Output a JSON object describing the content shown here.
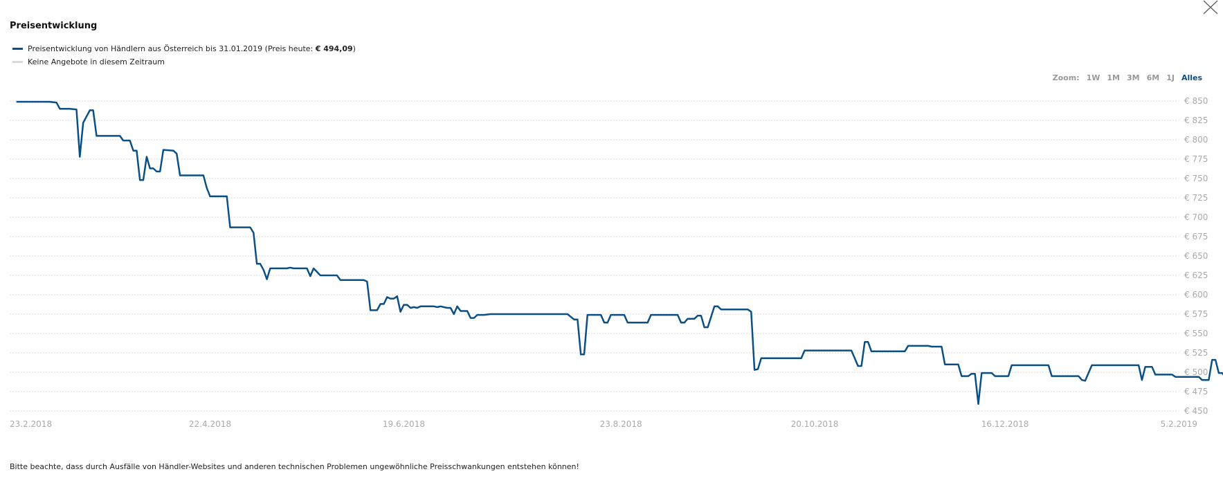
{
  "header": {
    "title": "Preisentwicklung",
    "close_label": "×"
  },
  "legend": {
    "line1_prefix": "Preisentwicklung von Händlern aus Österreich bis 31.01.2019 (Preis heute: ",
    "line1_price": "€ 494,09",
    "line1_suffix": ")",
    "line2": "Keine Angebote in diesem Zeitraum",
    "series_color": "#0b4f85",
    "empty_color": "#d9d9d9"
  },
  "zoom": {
    "label": "Zoom:",
    "options": [
      "1W",
      "1M",
      "3M",
      "6M",
      "1J",
      "Alles"
    ],
    "active": "Alles"
  },
  "footer": {
    "note": "Bitte beachte, dass durch Ausfälle von Händler-Websites und anderen technischen Problemen ungewöhnliche Preisschwankungen entstehen können!"
  },
  "chart_data": {
    "type": "line",
    "x_type": "date",
    "xlim": [
      "2018-02-21",
      "2019-02-06"
    ],
    "ylim": [
      450,
      850
    ],
    "y_ticks": [
      850,
      825,
      800,
      775,
      750,
      725,
      700,
      675,
      650,
      625,
      600,
      575,
      550,
      525,
      500,
      475,
      450
    ],
    "y_tick_labels": [
      "€ 850",
      "€ 825",
      "€ 800",
      "€ 775",
      "€ 750",
      "€ 725",
      "€ 700",
      "€ 675",
      "€ 650",
      "€ 625",
      "€ 600",
      "€ 575",
      "€ 550",
      "€ 525",
      "€ 500",
      "€ 475",
      "€ 450"
    ],
    "x_ticks": [
      "2018-02-23",
      "2018-04-22",
      "2018-06-19",
      "2018-08-23",
      "2018-10-20",
      "2018-12-16",
      "2019-02-05"
    ],
    "x_tick_labels": [
      "23.2.2018",
      "22.4.2018",
      "19.6.2018",
      "23.8.2018",
      "20.10.2018",
      "16.12.2018",
      "5.2.2019"
    ],
    "grid": true,
    "legend": "top-left",
    "series": [
      {
        "color": "#0b4f85",
        "points": [
          [
            "2018-02-23",
            849
          ],
          [
            "2018-03-05",
            849
          ],
          [
            "2018-03-07",
            848
          ],
          [
            "2018-03-08",
            840
          ],
          [
            "2018-03-11",
            840
          ],
          [
            "2018-03-13",
            839
          ],
          [
            "2018-03-14",
            778
          ],
          [
            "2018-03-15",
            822
          ],
          [
            "2018-03-17",
            838
          ],
          [
            "2018-03-18",
            838
          ],
          [
            "2018-03-19",
            805
          ],
          [
            "2018-03-26",
            805
          ],
          [
            "2018-03-27",
            799
          ],
          [
            "2018-03-29",
            799
          ],
          [
            "2018-03-30",
            786
          ],
          [
            "2018-03-31",
            786
          ],
          [
            "2018-04-01",
            748
          ],
          [
            "2018-04-02",
            748
          ],
          [
            "2018-04-03",
            778
          ],
          [
            "2018-04-04",
            763
          ],
          [
            "2018-04-05",
            763
          ],
          [
            "2018-04-06",
            759
          ],
          [
            "2018-04-07",
            759
          ],
          [
            "2018-04-08",
            787
          ],
          [
            "2018-04-11",
            786
          ],
          [
            "2018-04-12",
            782
          ],
          [
            "2018-04-13",
            754
          ],
          [
            "2018-04-20",
            754
          ],
          [
            "2018-04-21",
            738
          ],
          [
            "2018-04-22",
            727
          ],
          [
            "2018-04-27",
            727
          ],
          [
            "2018-04-28",
            687
          ],
          [
            "2018-05-04",
            687
          ],
          [
            "2018-05-05",
            680
          ],
          [
            "2018-05-06",
            640
          ],
          [
            "2018-05-07",
            640
          ],
          [
            "2018-05-08",
            632
          ],
          [
            "2018-05-09",
            620
          ],
          [
            "2018-05-10",
            634
          ],
          [
            "2018-05-15",
            634
          ],
          [
            "2018-05-16",
            635
          ],
          [
            "2018-05-17",
            634
          ],
          [
            "2018-05-21",
            634
          ],
          [
            "2018-05-22",
            624
          ],
          [
            "2018-05-23",
            634
          ],
          [
            "2018-05-25",
            625
          ],
          [
            "2018-05-30",
            625
          ],
          [
            "2018-05-31",
            619
          ],
          [
            "2018-06-07",
            619
          ],
          [
            "2018-06-08",
            617
          ],
          [
            "2018-06-09",
            580
          ],
          [
            "2018-06-11",
            580
          ],
          [
            "2018-06-12",
            588
          ],
          [
            "2018-06-13",
            588
          ],
          [
            "2018-06-14",
            597
          ],
          [
            "2018-06-15",
            595
          ],
          [
            "2018-06-16",
            595
          ],
          [
            "2018-06-17",
            598
          ],
          [
            "2018-06-18",
            578
          ],
          [
            "2018-06-19",
            587
          ],
          [
            "2018-06-20",
            587
          ],
          [
            "2018-06-21",
            583
          ],
          [
            "2018-06-22",
            584
          ],
          [
            "2018-06-23",
            583
          ],
          [
            "2018-06-24",
            585
          ],
          [
            "2018-06-28",
            585
          ],
          [
            "2018-06-29",
            584
          ],
          [
            "2018-06-30",
            585
          ],
          [
            "2018-07-02",
            583
          ],
          [
            "2018-07-03",
            583
          ],
          [
            "2018-07-04",
            575
          ],
          [
            "2018-07-05",
            585
          ],
          [
            "2018-07-06",
            579
          ],
          [
            "2018-07-08",
            579
          ],
          [
            "2018-07-09",
            570
          ],
          [
            "2018-07-10",
            570
          ],
          [
            "2018-07-11",
            574
          ],
          [
            "2018-07-13",
            574
          ],
          [
            "2018-07-15",
            575
          ],
          [
            "2018-08-07",
            575
          ],
          [
            "2018-08-09",
            568
          ],
          [
            "2018-08-10",
            568
          ],
          [
            "2018-08-11",
            523
          ],
          [
            "2018-08-12",
            523
          ],
          [
            "2018-08-13",
            574
          ],
          [
            "2018-08-17",
            574
          ],
          [
            "2018-08-18",
            564
          ],
          [
            "2018-08-19",
            564
          ],
          [
            "2018-08-20",
            574
          ],
          [
            "2018-08-24",
            574
          ],
          [
            "2018-08-25",
            564
          ],
          [
            "2018-08-31",
            564
          ],
          [
            "2018-09-01",
            574
          ],
          [
            "2018-09-09",
            574
          ],
          [
            "2018-09-10",
            564
          ],
          [
            "2018-09-11",
            564
          ],
          [
            "2018-09-12",
            569
          ],
          [
            "2018-09-14",
            569
          ],
          [
            "2018-09-15",
            573
          ],
          [
            "2018-09-16",
            573
          ],
          [
            "2018-09-17",
            558
          ],
          [
            "2018-09-18",
            558
          ],
          [
            "2018-09-20",
            585
          ],
          [
            "2018-09-21",
            585
          ],
          [
            "2018-09-22",
            581
          ],
          [
            "2018-09-30",
            581
          ],
          [
            "2018-10-01",
            578
          ],
          [
            "2018-10-02",
            503
          ],
          [
            "2018-10-03",
            504
          ],
          [
            "2018-10-04",
            518
          ],
          [
            "2018-10-16",
            518
          ],
          [
            "2018-10-17",
            528
          ],
          [
            "2018-10-31",
            528
          ],
          [
            "2018-11-02",
            508
          ],
          [
            "2018-11-03",
            508
          ],
          [
            "2018-11-04",
            539
          ],
          [
            "2018-11-05",
            539
          ],
          [
            "2018-11-06",
            527
          ],
          [
            "2018-11-16",
            527
          ],
          [
            "2018-11-17",
            534
          ],
          [
            "2018-11-23",
            534
          ],
          [
            "2018-11-24",
            533
          ],
          [
            "2018-11-27",
            533
          ],
          [
            "2018-11-28",
            510
          ],
          [
            "2018-12-02",
            510
          ],
          [
            "2018-12-03",
            495
          ],
          [
            "2018-12-05",
            495
          ],
          [
            "2018-12-06",
            498
          ],
          [
            "2018-12-07",
            498
          ],
          [
            "2018-12-08",
            459
          ],
          [
            "2018-12-09",
            499
          ],
          [
            "2018-12-12",
            499
          ],
          [
            "2018-12-13",
            495
          ],
          [
            "2018-12-17",
            495
          ],
          [
            "2018-12-18",
            509
          ],
          [
            "2018-12-29",
            509
          ],
          [
            "2018-12-30",
            495
          ],
          [
            "2019-01-07",
            495
          ],
          [
            "2019-01-08",
            490
          ],
          [
            "2019-01-09",
            489
          ],
          [
            "2019-01-11",
            509
          ],
          [
            "2019-01-25",
            509
          ],
          [
            "2019-01-26",
            490
          ],
          [
            "2019-01-27",
            507
          ],
          [
            "2019-01-29",
            507
          ],
          [
            "2019-01-30",
            497
          ],
          [
            "2019-02-04",
            497
          ],
          [
            "2019-02-05",
            494
          ],
          [
            "2019-02-12",
            494
          ],
          [
            "2019-02-13",
            490
          ],
          [
            "2019-02-15",
            490
          ],
          [
            "2019-02-16",
            516
          ],
          [
            "2019-02-17",
            516
          ],
          [
            "2019-02-18",
            499
          ],
          [
            "2019-02-19",
            499
          ],
          [
            "2019-02-20",
            494
          ],
          [
            "2019-02-22",
            494
          ]
        ]
      }
    ]
  }
}
